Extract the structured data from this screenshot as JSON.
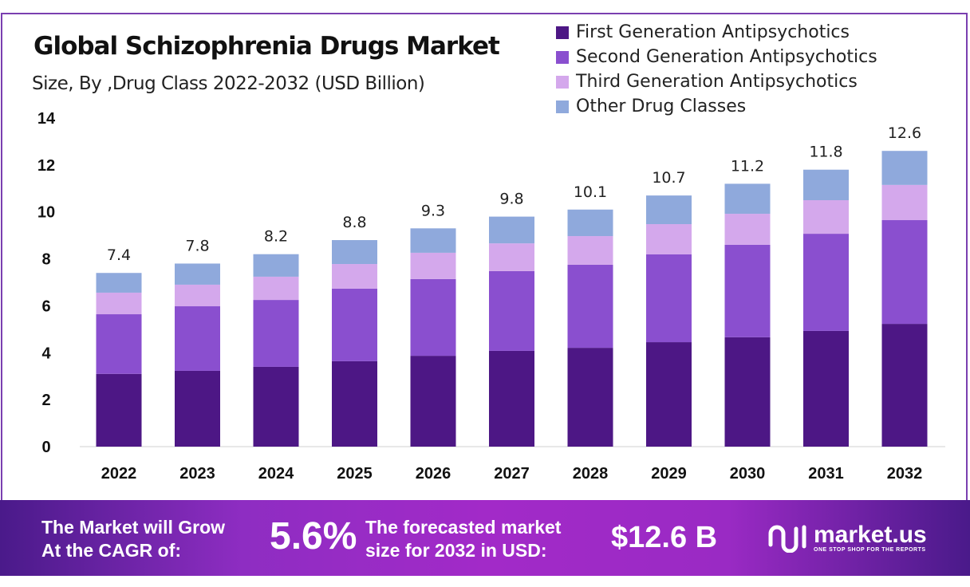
{
  "chart_data": {
    "type": "bar",
    "stacked": true,
    "title": "Global Schizophrenia Drugs Market",
    "subtitle": "Size, By ,Drug Class 2022-2032 (USD Billion)",
    "categories": [
      "2022",
      "2023",
      "2024",
      "2025",
      "2026",
      "2027",
      "2028",
      "2029",
      "2030",
      "2031",
      "2032"
    ],
    "series": [
      {
        "name": "First Generation Antipsychotics",
        "color": "#4d1785",
        "values": [
          3.1,
          3.23,
          3.4,
          3.64,
          3.87,
          4.08,
          4.21,
          4.45,
          4.66,
          4.93,
          5.23
        ]
      },
      {
        "name": "Second Generation Antipsychotics",
        "color": "#8a4fcf",
        "values": [
          2.54,
          2.75,
          2.85,
          3.09,
          3.27,
          3.4,
          3.54,
          3.74,
          3.94,
          4.14,
          4.42
        ]
      },
      {
        "name": "Third Generation Antipsychotics",
        "color": "#d4a8ec",
        "values": [
          0.92,
          0.92,
          0.99,
          1.05,
          1.12,
          1.18,
          1.22,
          1.29,
          1.32,
          1.43,
          1.5
        ]
      },
      {
        "name": "Other Drug Classes",
        "color": "#8fa9dc",
        "values": [
          0.84,
          0.9,
          0.96,
          1.02,
          1.04,
          1.14,
          1.13,
          1.22,
          1.28,
          1.3,
          1.45
        ]
      }
    ],
    "totals": [
      "7.4",
      "7.8",
      "8.2",
      "8.8",
      "9.3",
      "9.8",
      "10.1",
      "10.7",
      "11.2",
      "11.8",
      "12.6"
    ],
    "yticks": [
      "0",
      "2",
      "4",
      "6",
      "8",
      "10",
      "12",
      "14"
    ],
    "ylim": [
      0,
      14
    ],
    "grid": false,
    "legend": "top-right"
  },
  "footer": {
    "cagr_label_1": "The Market will Grow",
    "cagr_label_2": "At the CAGR of:",
    "cagr_value": "5.6%",
    "forecast_label_1": "The forecasted market",
    "forecast_label_2": "size for 2032 in USD:",
    "forecast_value": "$12.6 B",
    "brand": "market.us",
    "tagline": "ONE STOP SHOP FOR THE REPORTS"
  }
}
